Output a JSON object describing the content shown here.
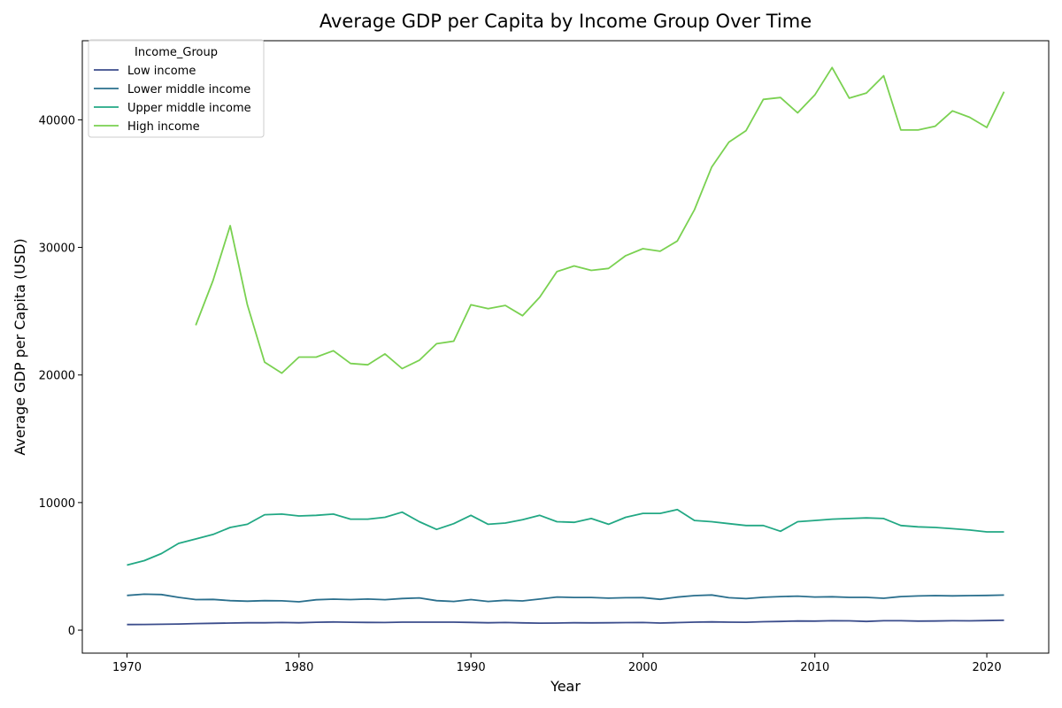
{
  "chart_data": {
    "type": "line",
    "title": "Average GDP per Capita by Income Group Over Time",
    "xlabel": "Year",
    "ylabel": "Average GDP per Capita (USD)",
    "xlim": [
      1967.4,
      2023.6
    ],
    "ylim": [
      -1800,
      46200
    ],
    "xticks": [
      1970,
      1980,
      1990,
      2000,
      2010,
      2020
    ],
    "yticks": [
      0,
      10000,
      20000,
      30000,
      40000
    ],
    "grid": false,
    "legend": {
      "title": "Income_Group",
      "position": "top-left"
    },
    "x": [
      1970,
      1971,
      1972,
      1973,
      1974,
      1975,
      1976,
      1977,
      1978,
      1979,
      1980,
      1981,
      1982,
      1983,
      1984,
      1985,
      1986,
      1987,
      1988,
      1989,
      1990,
      1991,
      1992,
      1993,
      1994,
      1995,
      1996,
      1997,
      1998,
      1999,
      2000,
      2001,
      2002,
      2003,
      2004,
      2005,
      2006,
      2007,
      2008,
      2009,
      2010,
      2011,
      2012,
      2013,
      2014,
      2015,
      2016,
      2017,
      2018,
      2019,
      2020,
      2021
    ],
    "series": [
      {
        "name": "Low income",
        "color": "#3b4d8c",
        "values": [
          440,
          450,
          460,
          480,
          520,
          540,
          560,
          580,
          580,
          600,
          580,
          620,
          640,
          620,
          610,
          600,
          630,
          630,
          630,
          630,
          610,
          580,
          600,
          570,
          550,
          560,
          580,
          570,
          580,
          590,
          600,
          560,
          590,
          630,
          650,
          630,
          620,
          660,
          680,
          720,
          710,
          740,
          730,
          680,
          740,
          740,
          710,
          720,
          740,
          730,
          750,
          770
        ]
      },
      {
        "name": "Lower middle income",
        "color": "#2a6f8d",
        "values": [
          2720,
          2820,
          2790,
          2570,
          2400,
          2410,
          2310,
          2270,
          2310,
          2300,
          2220,
          2380,
          2430,
          2400,
          2440,
          2390,
          2480,
          2530,
          2310,
          2250,
          2400,
          2250,
          2340,
          2290,
          2440,
          2600,
          2560,
          2560,
          2510,
          2540,
          2550,
          2420,
          2590,
          2710,
          2760,
          2540,
          2470,
          2580,
          2630,
          2670,
          2600,
          2620,
          2570,
          2570,
          2500,
          2630,
          2680,
          2710,
          2690,
          2710,
          2720,
          2750
        ]
      },
      {
        "name": "Upper middle income",
        "color": "#22a884",
        "values": [
          5100,
          5450,
          6000,
          6800,
          7150,
          7500,
          8050,
          8300,
          9050,
          9100,
          8950,
          9000,
          9100,
          8700,
          8700,
          8850,
          9250,
          8500,
          7900,
          8350,
          9000,
          8300,
          8400,
          8650,
          9000,
          8500,
          8450,
          8750,
          8300,
          8850,
          9150,
          9150,
          9450,
          8600,
          8500,
          8350,
          8200,
          8200,
          7750,
          8500,
          8600,
          8700,
          8750,
          8800,
          8750,
          8200,
          8100,
          8050,
          7950,
          7850,
          7700,
          7700
        ]
      },
      {
        "name": "High income",
        "color": "#7ad151",
        "values": [
          null,
          null,
          null,
          null,
          23900,
          27400,
          31700,
          25500,
          21000,
          20150,
          21400,
          21400,
          21900,
          20900,
          20800,
          21650,
          20500,
          21150,
          22450,
          22650,
          25500,
          25200,
          25450,
          24650,
          26100,
          28100,
          28550,
          28200,
          28350,
          29350,
          29900,
          29700,
          30500,
          32950,
          36300,
          38250,
          39150,
          41600,
          41750,
          40550,
          41950,
          44100,
          41700,
          42100,
          43450,
          39200,
          39200,
          39500,
          40700,
          40200,
          39400,
          42200
        ]
      }
    ]
  }
}
